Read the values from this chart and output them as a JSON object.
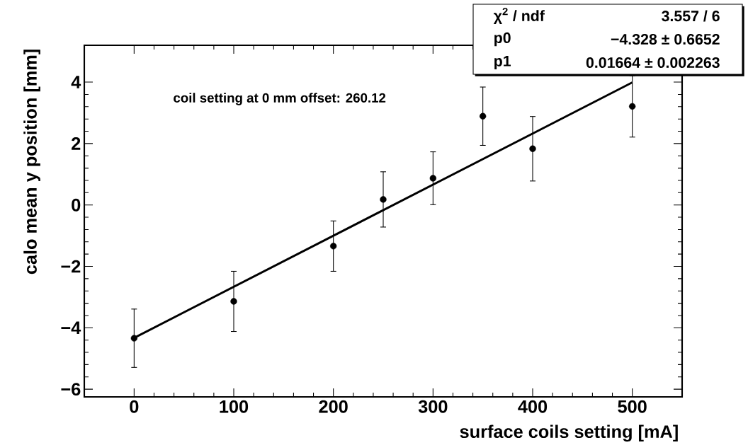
{
  "chart_data": {
    "type": "scatter",
    "xlabel": "surface coils setting [mA]",
    "ylabel": "calo mean y position [mm]",
    "xlim": [
      -50,
      550
    ],
    "ylim": [
      -6.25,
      5.2
    ],
    "xticks": [
      0,
      100,
      200,
      300,
      400,
      500
    ],
    "yticks": [
      {
        "value": -6,
        "label": "−6"
      },
      {
        "value": -4,
        "label": "−4"
      },
      {
        "value": -2,
        "label": "−2"
      },
      0,
      2,
      4
    ],
    "grid": false,
    "series": [
      {
        "color": "#000000",
        "marker": "circle",
        "x": [
          0,
          100,
          200,
          250,
          300,
          350,
          400,
          500
        ],
        "values": [
          -4.34,
          -3.14,
          -1.34,
          0.18,
          0.87,
          2.89,
          1.83,
          3.21
        ],
        "errors": [
          0.95,
          0.98,
          0.82,
          0.9,
          0.86,
          0.95,
          1.05,
          1.0
        ]
      },
      {
        "type": "line",
        "color": "#000000",
        "marker": "none",
        "line_style": "solid",
        "x": [
          0,
          500
        ],
        "values": [
          -4.33,
          3.99
        ]
      }
    ],
    "annotations": [
      "coil setting at 0 mm offset: 260.12",
      "χ$^{2}$ / ndf",
      "3.557 / 6",
      "p0",
      "−4.328 ± 0.6652",
      "p1",
      "0.01664 ± 0.002263"
    ]
  }
}
